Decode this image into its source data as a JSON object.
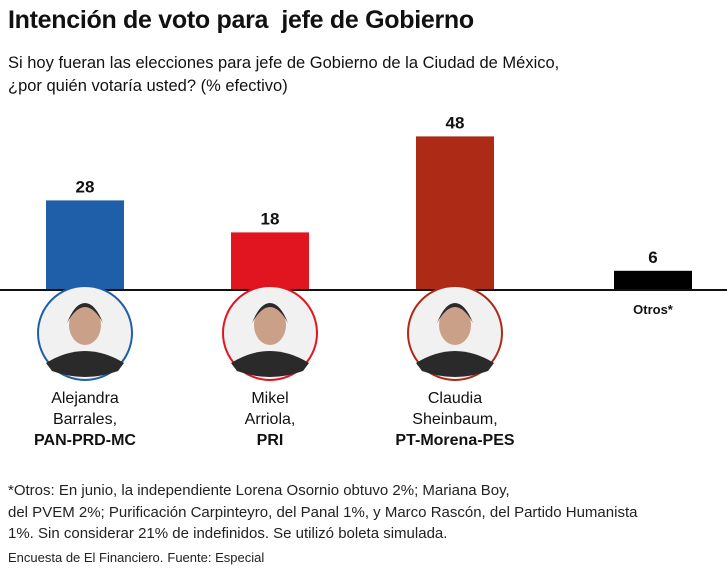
{
  "header": {
    "title": "Intención de voto para  jefe de Gobierno",
    "subtitle_line1": "Si hoy fueran las elecciones para jefe de Gobierno de la Ciudad de México,",
    "subtitle_line2": "¿por quién votaría usted? (% efectivo)"
  },
  "chart_data": {
    "type": "bar",
    "title": "Intención de voto para  jefe de Gobierno",
    "categories": [
      "Alejandra Barrales, PAN-PRD-MC",
      "Mikel Arriola, PRI",
      "Claudia Sheinbaum, PT-Morena-PES",
      "Otros*"
    ],
    "values": [
      28,
      18,
      48,
      6
    ],
    "colors": [
      "#1f5ea8",
      "#e0151f",
      "#ad2a17",
      "#000000"
    ],
    "ylim": [
      0,
      50
    ],
    "grid": false,
    "legend": "none"
  },
  "candidates": [
    {
      "first": "Alejandra",
      "last": "Barrales,",
      "party": "PAN-PRD-MC"
    },
    {
      "first": "Mikel",
      "last": "Arriola,",
      "party": "PRI"
    },
    {
      "first": "Claudia",
      "last": "Sheinbaum,",
      "party": "PT-Morena-PES"
    }
  ],
  "otros_label": "Otros*",
  "footnote": {
    "line1": "*Otros: En junio, la independiente Lorena Osornio obtuvo 2%; Mariana Boy,",
    "line2": "del PVEM 2%; Purificación Carpinteyro, del Panal 1%, y Marco Rascón, del Partido Humanista",
    "line3": "1%. Sin considerar 21% de indefinidos. Se utilizó boleta simulada."
  },
  "source": {
    "survey": "Encuesta de El Financiero.",
    "origin": "Fuente: Especial"
  },
  "colors": {
    "ring_blue": "#1f5ea8",
    "ring_red": "#e0151f",
    "ring_darkred": "#ad2a17",
    "baseline": "#111111"
  }
}
